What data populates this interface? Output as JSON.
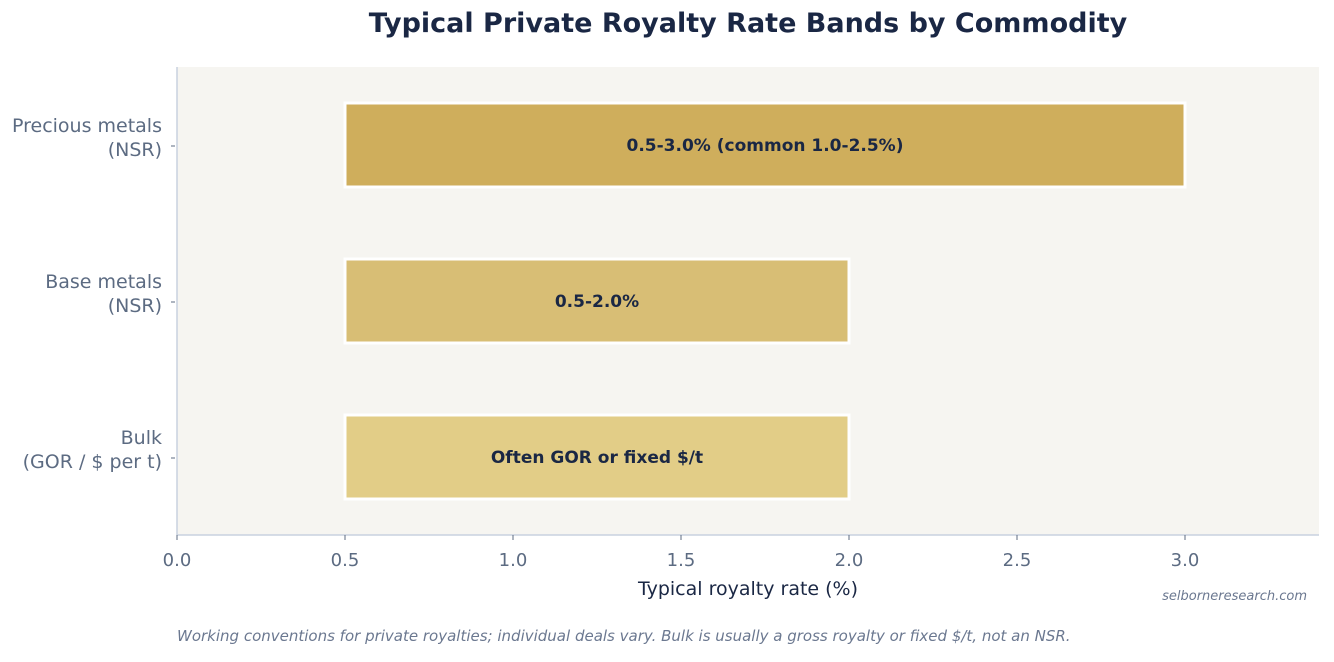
{
  "chart_data": {
    "type": "bar",
    "orientation": "horizontal",
    "title": "Typical Private Royalty Rate Bands by Commodity",
    "xlabel": "Typical royalty rate (%)",
    "xlim": [
      0,
      3.4
    ],
    "xticks": [
      "0.0",
      "0.5",
      "1.0",
      "1.5",
      "2.0",
      "2.5",
      "3.0"
    ],
    "categories": [
      [
        "Precious metals",
        "(NSR)"
      ],
      [
        "Base metals",
        "(NSR)"
      ],
      [
        "Bulk",
        "(GOR / $ per t)"
      ]
    ],
    "bars": [
      {
        "start": 0.5,
        "end": 3.0,
        "label": "0.5-3.0% (common 1.0-2.5%)",
        "color": "#cfae5c"
      },
      {
        "start": 0.5,
        "end": 2.0,
        "label": "0.5-2.0%",
        "color": "#d8be75"
      },
      {
        "start": 0.5,
        "end": 2.0,
        "label": "Often GOR or fixed $/t",
        "color": "#e2cd87"
      }
    ],
    "grid": false,
    "background": "#f6f5f1"
  },
  "source": "selborneresearch.com",
  "footnote": "Working conventions for private royalties; individual deals vary. Bulk is usually a gross royalty or fixed $/t, not an NSR."
}
